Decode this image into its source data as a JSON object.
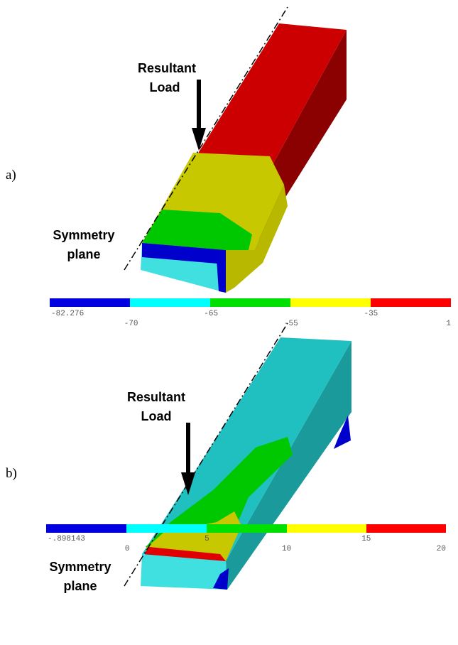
{
  "panels": [
    {
      "label": "a)",
      "load_label": [
        "Resultant",
        "Load"
      ],
      "symmetry_label": [
        "Symmetry",
        "plane"
      ],
      "colorbar_labels": [
        "-82.276",
        "-70",
        "-65",
        "-55",
        "-35",
        "1"
      ]
    },
    {
      "label": "b)",
      "load_label": [
        "Resultant",
        "Load"
      ],
      "symmetry_label": [
        "Symmetry",
        "plane"
      ],
      "colorbar_labels": [
        "-.898143",
        "0",
        "5",
        "10",
        "15",
        "20"
      ]
    }
  ]
}
